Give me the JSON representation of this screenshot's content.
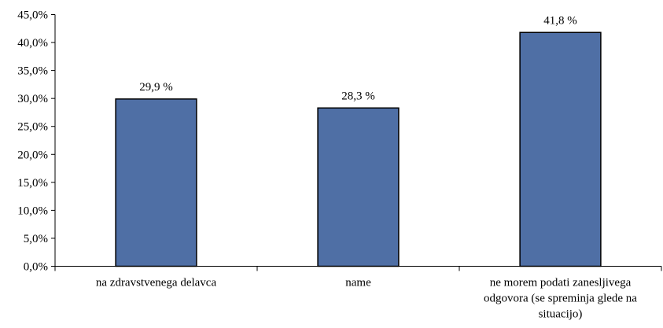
{
  "chart_data": {
    "type": "bar",
    "categories": [
      [
        "na zdravstvenega delavca"
      ],
      [
        "name"
      ],
      [
        "ne morem podati zanesljivega",
        "odgovora (se spreminja glede na",
        "situacijo)"
      ]
    ],
    "values": [
      29.9,
      28.3,
      41.8
    ],
    "data_labels": [
      "29,9 %",
      "28,3 %",
      "41,8 %"
    ],
    "ylim": [
      0,
      45
    ],
    "y_ticks": [
      0,
      5,
      10,
      15,
      20,
      25,
      30,
      35,
      40,
      45
    ],
    "y_tick_labels": [
      "0,0%",
      "5,0%",
      "10,0%",
      "15,0%",
      "20,0%",
      "25,0%",
      "30,0%",
      "35,0%",
      "40,0%",
      "45,0%"
    ],
    "title": "",
    "xlabel": "",
    "ylabel": "",
    "grid": false,
    "legend": "none",
    "bar_color": "#4F6FA5",
    "bar_edge_color": "#000000"
  }
}
